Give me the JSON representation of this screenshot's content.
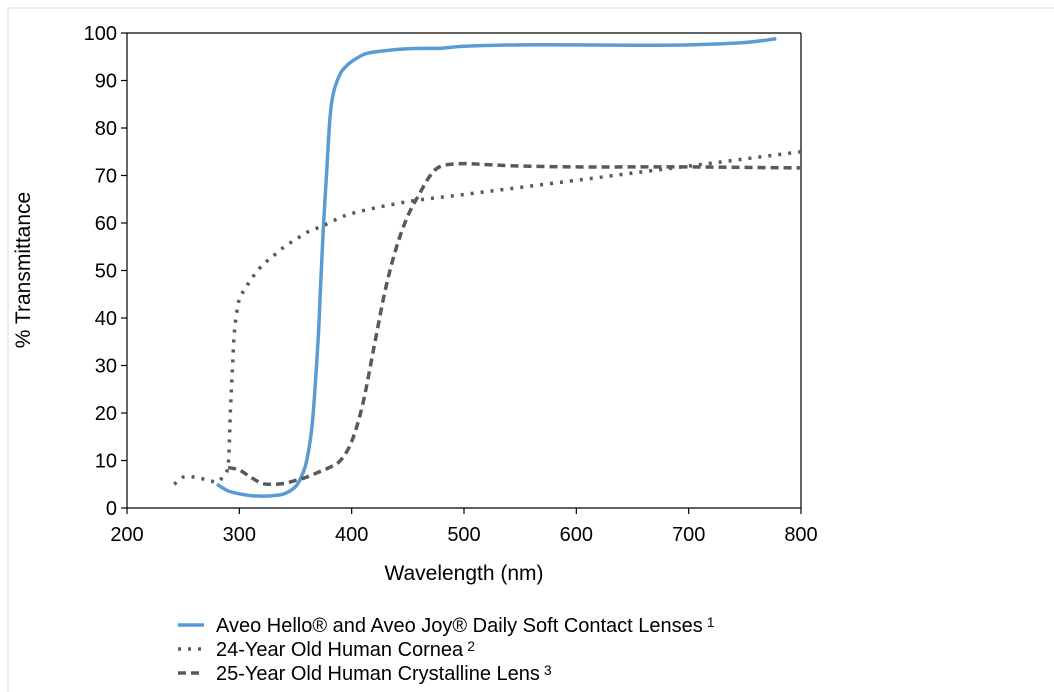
{
  "chart_data": {
    "type": "line",
    "title": "",
    "xlabel": "Wavelength (nm)",
    "ylabel": "% Transmittance",
    "xlim": [
      200,
      800
    ],
    "ylim": [
      0,
      100
    ],
    "xticks": [
      200,
      300,
      400,
      500,
      600,
      700,
      800
    ],
    "yticks": [
      0,
      10,
      20,
      30,
      40,
      50,
      60,
      70,
      80,
      90,
      100
    ],
    "grid": false,
    "legend_position": "bottom",
    "series": [
      {
        "name": "Aveo Hello® and Aveo Joy® Daily Soft Contact Lenses",
        "superscript": "1",
        "style": "solid",
        "color": "#5b9bd5",
        "x": [
          280,
          290,
          300,
          310,
          320,
          330,
          340,
          350,
          355,
          360,
          365,
          370,
          372,
          375,
          378,
          380,
          382,
          385,
          390,
          395,
          400,
          410,
          420,
          450,
          480,
          500,
          550,
          600,
          650,
          700,
          750,
          778
        ],
        "y": [
          5,
          3.6,
          3.0,
          2.6,
          2.5,
          2.6,
          3.0,
          4.5,
          6.5,
          10,
          18,
          35,
          45,
          60,
          72,
          80,
          85,
          88.5,
          91.5,
          93,
          94,
          95.4,
          96.0,
          96.7,
          96.8,
          97.2,
          97.5,
          97.5,
          97.4,
          97.5,
          98.0,
          98.8
        ]
      },
      {
        "name": "24-Year Old Human Cornea",
        "superscript": "2",
        "style": "dotted",
        "color": "#595959",
        "x": [
          242,
          250,
          260,
          270,
          280,
          285,
          290,
          292,
          294,
          296,
          300,
          305,
          310,
          320,
          330,
          340,
          350,
          360,
          370,
          380,
          400,
          450,
          500,
          550,
          600,
          650,
          700,
          750,
          800
        ],
        "y": [
          5,
          6.5,
          6.5,
          6,
          5.5,
          6.5,
          9,
          20,
          30,
          38,
          44,
          46,
          48,
          51,
          53,
          55,
          56.5,
          58,
          59,
          60,
          62,
          64.5,
          66,
          67.5,
          69,
          70.5,
          72,
          73.5,
          75
        ]
      },
      {
        "name": "25-Year Old Human Crystalline Lens",
        "superscript": "3",
        "style": "dashed",
        "color": "#595959",
        "x": [
          290,
          300,
          310,
          320,
          330,
          340,
          350,
          360,
          370,
          380,
          390,
          400,
          410,
          420,
          430,
          440,
          450,
          460,
          470,
          480,
          500,
          520,
          550,
          600,
          650,
          700,
          750,
          800
        ],
        "y": [
          8.5,
          8,
          6.5,
          5.2,
          5.0,
          5.2,
          5.8,
          6.5,
          7.5,
          8.5,
          10,
          14,
          22,
          34,
          46,
          55,
          61.5,
          66,
          70,
          72,
          72.5,
          72.3,
          72,
          71.8,
          71.8,
          71.8,
          71.7,
          71.6
        ]
      }
    ]
  }
}
